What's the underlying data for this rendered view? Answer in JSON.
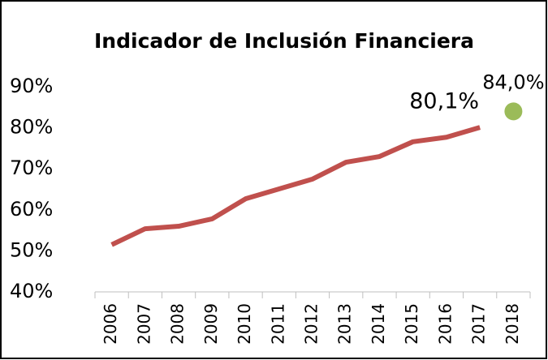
{
  "chart_data": {
    "type": "line",
    "title": "Indicador de Inclusión Financiera",
    "categories": [
      "2006",
      "2007",
      "2008",
      "2009",
      "2010",
      "2011",
      "2012",
      "2013",
      "2014",
      "2015",
      "2016",
      "2017",
      "2018"
    ],
    "series": [
      {
        "color": "#c0504d",
        "style": "line",
        "values": [
          51.5,
          55.4,
          56.0,
          57.8,
          62.7,
          65.1,
          67.5,
          71.6,
          73.0,
          76.6,
          77.7,
          80.1,
          null
        ],
        "value_labels": [
          null,
          null,
          null,
          null,
          null,
          null,
          null,
          null,
          null,
          null,
          null,
          "80,1%",
          null
        ]
      },
      {
        "color": "#9bbb59",
        "style": "marker",
        "values": [
          null,
          null,
          null,
          null,
          null,
          null,
          null,
          null,
          null,
          null,
          null,
          null,
          84.0
        ],
        "value_labels": [
          null,
          null,
          null,
          null,
          null,
          null,
          null,
          null,
          null,
          null,
          null,
          null,
          "84,0%"
        ]
      }
    ],
    "ylim": [
      40,
      90
    ],
    "yticks": [
      {
        "value": 40,
        "label": "40%"
      },
      {
        "value": 50,
        "label": "50%"
      },
      {
        "value": 60,
        "label": "60%"
      },
      {
        "value": 70,
        "label": "70%"
      },
      {
        "value": 80,
        "label": "80%"
      },
      {
        "value": 90,
        "label": "90%"
      }
    ],
    "grid": false
  }
}
